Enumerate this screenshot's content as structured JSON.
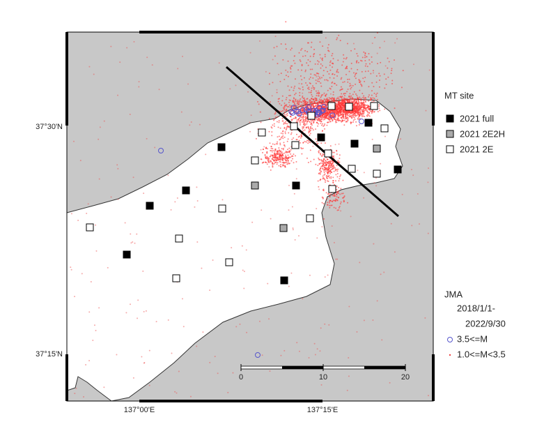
{
  "map": {
    "lat_labels": [
      "37°30'N",
      "37°15'N"
    ],
    "lon_labels": [
      "137°00'E",
      "137°15'E"
    ],
    "mt_legend": {
      "title": "MT site",
      "items": [
        "2021 full",
        "2021 2E2H",
        "2021 2E"
      ]
    },
    "jma_legend": {
      "title": "JMA",
      "period": [
        "2018/1/1-",
        "2022/9/30"
      ],
      "items": [
        "3.5<=M",
        "1.0<=M<3.5"
      ]
    },
    "scale_bar": {
      "ticks": [
        0,
        10,
        20
      ]
    }
  }
}
